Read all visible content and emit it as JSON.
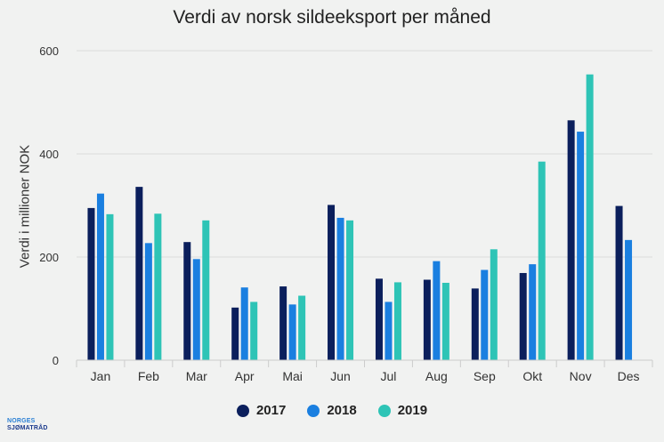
{
  "chart_data": {
    "type": "bar",
    "title": "Verdi av norsk sildeeksport per måned",
    "xlabel": "",
    "ylabel": "Verdi i millioner NOK",
    "ylim": [
      0,
      600
    ],
    "yticks": [
      0,
      200,
      400,
      600
    ],
    "grid": true,
    "legend_position": "bottom",
    "categories": [
      "Jan",
      "Feb",
      "Mar",
      "Apr",
      "Mai",
      "Jun",
      "Jul",
      "Aug",
      "Sep",
      "Okt",
      "Nov",
      "Des"
    ],
    "series": [
      {
        "name": "2017",
        "color": "#0b1f5c",
        "values": [
          295,
          336,
          229,
          102,
          143,
          301,
          158,
          156,
          139,
          169,
          465,
          299
        ]
      },
      {
        "name": "2018",
        "color": "#1a7fe0",
        "values": [
          323,
          227,
          196,
          141,
          108,
          276,
          113,
          192,
          175,
          186,
          443,
          233
        ]
      },
      {
        "name": "2019",
        "color": "#2ec4b6",
        "values": [
          283,
          284,
          271,
          113,
          125,
          271,
          151,
          150,
          215,
          385,
          554,
          null
        ]
      }
    ]
  },
  "logo": {
    "line1": "NORGES",
    "line2": "SJØMATRÅD"
  }
}
